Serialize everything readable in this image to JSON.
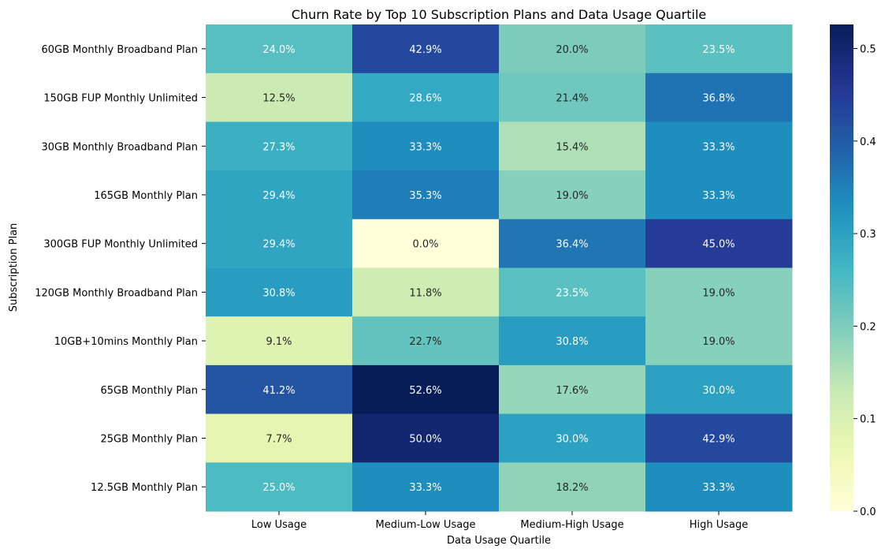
{
  "chart_data": {
    "type": "heatmap",
    "title": "Churn Rate by Top 10 Subscription Plans and Data Usage Quartile",
    "xlabel": "Data Usage Quartile",
    "ylabel": "Subscription Plan",
    "x_categories": [
      "Low Usage",
      "Medium-Low Usage",
      "Medium-High Usage",
      "High Usage"
    ],
    "y_categories": [
      "60GB Monthly Broadband Plan",
      "150GB FUP Monthly Unlimited",
      "30GB Monthly Broadband Plan",
      "165GB Monthly Plan",
      "300GB FUP Monthly Unlimited",
      "120GB Monthly Broadband Plan",
      "10GB+10mins Monthly Plan",
      "65GB Monthly Plan",
      "25GB Monthly Plan",
      "12.5GB Monthly Plan"
    ],
    "values": [
      [
        0.24,
        0.429,
        0.2,
        0.235
      ],
      [
        0.125,
        0.286,
        0.214,
        0.368
      ],
      [
        0.273,
        0.333,
        0.154,
        0.333
      ],
      [
        0.294,
        0.353,
        0.19,
        0.333
      ],
      [
        0.294,
        0.0,
        0.364,
        0.45
      ],
      [
        0.308,
        0.118,
        0.235,
        0.19
      ],
      [
        0.091,
        0.227,
        0.308,
        0.19
      ],
      [
        0.412,
        0.526,
        0.176,
        0.3
      ],
      [
        0.077,
        0.5,
        0.3,
        0.429
      ],
      [
        0.25,
        0.333,
        0.182,
        0.333
      ]
    ],
    "cell_labels": [
      [
        "24.0%",
        "42.9%",
        "20.0%",
        "23.5%"
      ],
      [
        "12.5%",
        "28.6%",
        "21.4%",
        "36.8%"
      ],
      [
        "27.3%",
        "33.3%",
        "15.4%",
        "33.3%"
      ],
      [
        "29.4%",
        "35.3%",
        "19.0%",
        "33.3%"
      ],
      [
        "29.4%",
        "0.0%",
        "36.4%",
        "45.0%"
      ],
      [
        "30.8%",
        "11.8%",
        "23.5%",
        "19.0%"
      ],
      [
        "9.1%",
        "22.7%",
        "30.8%",
        "19.0%"
      ],
      [
        "41.2%",
        "52.6%",
        "17.6%",
        "30.0%"
      ],
      [
        "7.7%",
        "50.0%",
        "30.0%",
        "42.9%"
      ],
      [
        "25.0%",
        "33.3%",
        "18.2%",
        "33.3%"
      ]
    ],
    "colormap": "YlGnBu",
    "value_range": [
      0,
      0.526
    ],
    "colorbar_ticks": [
      "0.0",
      "0.1",
      "0.2",
      "0.3",
      "0.4",
      "0.5"
    ],
    "grid": false
  }
}
